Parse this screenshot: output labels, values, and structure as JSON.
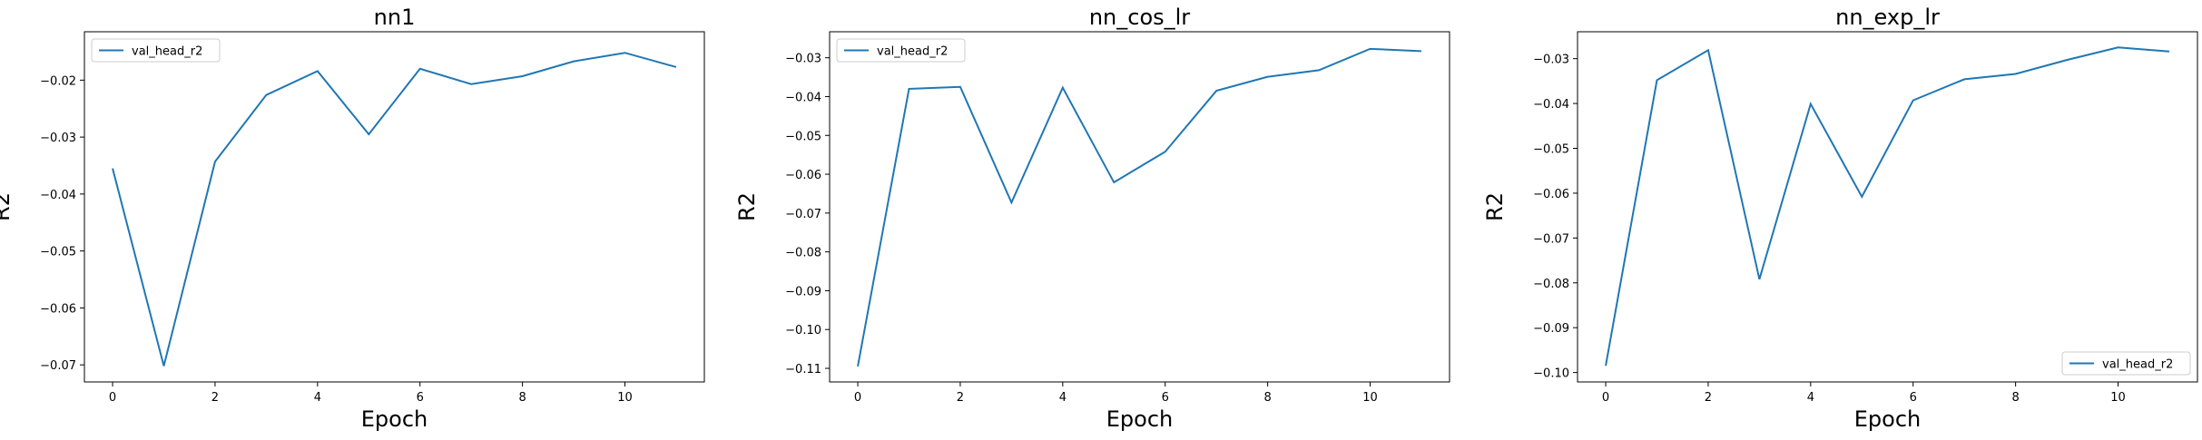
{
  "chart_data": [
    {
      "type": "line",
      "title": "nn1",
      "xlabel": "Epoch",
      "ylabel": "R2",
      "xlim": [
        -0.55,
        11.55
      ],
      "ylim": [
        -0.073,
        -0.0115
      ],
      "xticks": [
        0,
        2,
        4,
        6,
        8,
        10
      ],
      "xtick_labels": [
        "0",
        "2",
        "4",
        "6",
        "8",
        "10"
      ],
      "yticks": [
        -0.07,
        -0.06,
        -0.05,
        -0.04,
        -0.03,
        -0.02
      ],
      "ytick_labels": [
        "−0.07",
        "−0.06",
        "−0.05",
        "−0.04",
        "−0.03",
        "−0.02"
      ],
      "legend_position": "upper-left",
      "grid": false,
      "series": [
        {
          "name": "val_head_r2",
          "color": "#1f77b4",
          "x": [
            0,
            1,
            2,
            3,
            4,
            5,
            6,
            7,
            8,
            9,
            10,
            11
          ],
          "y": [
            -0.0355,
            -0.0702,
            -0.0343,
            -0.0226,
            -0.0184,
            -0.0295,
            -0.018,
            -0.0207,
            -0.0193,
            -0.0167,
            -0.0152,
            -0.0177
          ]
        }
      ]
    },
    {
      "type": "line",
      "title": "nn_cos_lr",
      "xlabel": "Epoch",
      "ylabel": "R2",
      "xlim": [
        -0.55,
        11.55
      ],
      "ylim": [
        -0.1135,
        -0.0233
      ],
      "xticks": [
        0,
        2,
        4,
        6,
        8,
        10
      ],
      "xtick_labels": [
        "0",
        "2",
        "4",
        "6",
        "8",
        "10"
      ],
      "yticks": [
        -0.11,
        -0.1,
        -0.09,
        -0.08,
        -0.07,
        -0.06,
        -0.05,
        -0.04,
        -0.03
      ],
      "ytick_labels": [
        "−0.11",
        "−0.10",
        "−0.09",
        "−0.08",
        "−0.07",
        "−0.06",
        "−0.05",
        "−0.04",
        "−0.03"
      ],
      "legend_position": "upper-left",
      "grid": false,
      "series": [
        {
          "name": "val_head_r2",
          "color": "#1f77b4",
          "x": [
            0,
            1,
            2,
            3,
            4,
            5,
            6,
            7,
            8,
            9,
            10,
            11
          ],
          "y": [
            -0.1095,
            -0.038,
            -0.0375,
            -0.0673,
            -0.0377,
            -0.0621,
            -0.0542,
            -0.0385,
            -0.0349,
            -0.0332,
            -0.0277,
            -0.0283
          ]
        }
      ]
    },
    {
      "type": "line",
      "title": "nn_exp_lr",
      "xlabel": "Epoch",
      "ylabel": "R2",
      "xlim": [
        -0.55,
        11.55
      ],
      "ylim": [
        -0.1021,
        -0.024
      ],
      "xticks": [
        0,
        2,
        4,
        6,
        8,
        10
      ],
      "xtick_labels": [
        "0",
        "2",
        "4",
        "6",
        "8",
        "10"
      ],
      "yticks": [
        -0.1,
        -0.09,
        -0.08,
        -0.07,
        -0.06,
        -0.05,
        -0.04,
        -0.03
      ],
      "ytick_labels": [
        "−0.10",
        "−0.09",
        "−0.08",
        "−0.07",
        "−0.06",
        "−0.05",
        "−0.04",
        "−0.03"
      ],
      "legend_position": "lower-right",
      "grid": false,
      "series": [
        {
          "name": "val_head_r2",
          "color": "#1f77b4",
          "x": [
            0,
            1,
            2,
            3,
            4,
            5,
            6,
            7,
            8,
            9,
            10,
            11
          ],
          "y": [
            -0.0985,
            -0.0348,
            -0.0281,
            -0.0792,
            -0.0401,
            -0.0608,
            -0.0393,
            -0.0346,
            -0.0334,
            -0.0303,
            -0.0275,
            -0.0284
          ]
        }
      ]
    }
  ]
}
